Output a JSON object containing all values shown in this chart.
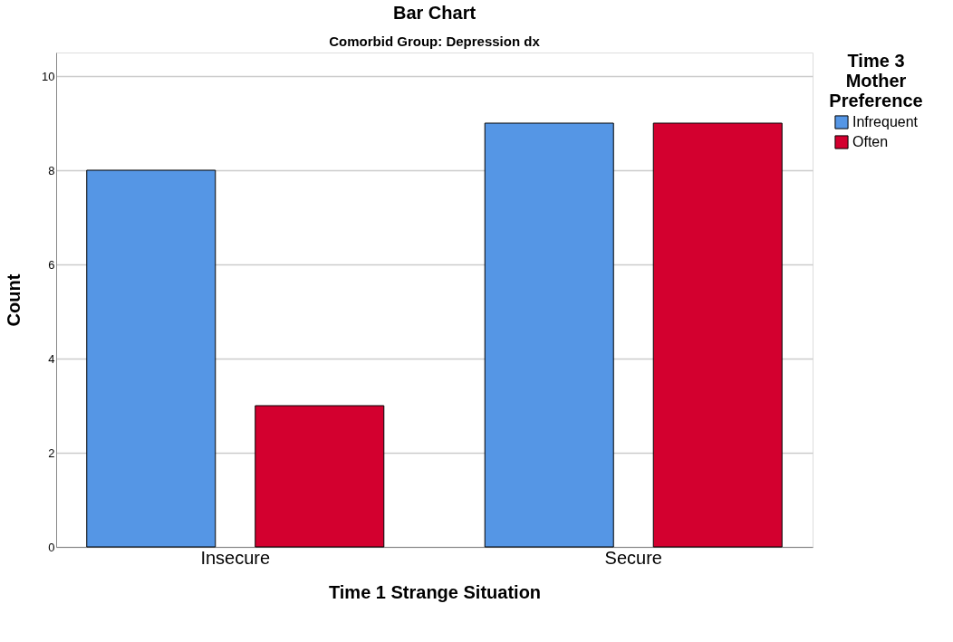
{
  "chart_data": {
    "type": "bar",
    "title": "Bar Chart",
    "subtitle": "Comorbid Group: Depression dx",
    "xlabel": "Time 1 Strange Situation",
    "ylabel": "Count",
    "legend_title": "Time 3 Mother Preference",
    "categories": [
      "Insecure",
      "Secure"
    ],
    "series": [
      {
        "name": "Infrequent",
        "color": "#5596e5",
        "values": [
          8,
          9
        ]
      },
      {
        "name": "Often",
        "color": "#d3002f",
        "values": [
          3,
          9
        ]
      }
    ],
    "ylim": [
      0,
      10.5
    ],
    "yticks": [
      0,
      2,
      4,
      6,
      8,
      10
    ],
    "grid": "y",
    "legend": "top right"
  }
}
